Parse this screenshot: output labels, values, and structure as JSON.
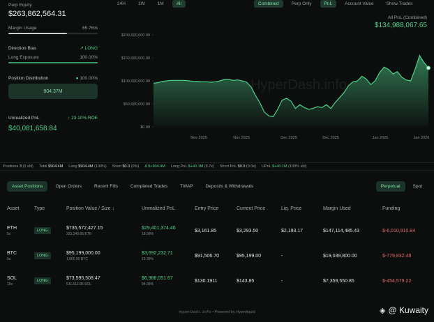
{
  "left": {
    "perp_equity_label": "Perp Equity",
    "perp_equity_value": "$263,862,564.31",
    "margin_usage_label": "Margin Usage",
    "margin_usage_value": "65.76%",
    "margin_usage_pct": 65.76,
    "direction_bias_label": "Direction Bias",
    "direction_bias_value": "LONG",
    "long_exposure_label": "Long Exposure",
    "long_exposure_value": "100.00%",
    "long_exposure_pct": 100,
    "position_distribution_label": "Position Distribution",
    "position_distribution_pct": "100.00%",
    "position_distribution_value": "904.37M",
    "unrealized_pnl_label": "Unrealized PnL",
    "roe_value": "23.10% ROE",
    "unrealized_pnl_value": "$40,081,658.84"
  },
  "chart_controls": {
    "ranges": [
      "24H",
      "1W",
      "1M",
      "All"
    ],
    "active_range": "All",
    "modes": [
      "Combined",
      "Perp Only"
    ],
    "active_mode": "Combined",
    "metrics": [
      "PnL",
      "Account Value"
    ],
    "active_metric": "PnL",
    "show_trades": "Show Trades"
  },
  "chart_header": {
    "label": "All PnL (Combined)",
    "value": "$134,988,067.65"
  },
  "chart_data": {
    "type": "area",
    "watermark": "HyperDash.info",
    "x_ticks": [
      "Nov 2025",
      "Nov 2025",
      "Dec 2025",
      "Dec 2025",
      "Jan 2026",
      "Jan 2026"
    ],
    "y_ticks": [
      "$200,000,000.00",
      "$150,000,000.00",
      "$100,000,000.00",
      "$50,000,000.00",
      "$0.00"
    ],
    "ylim": [
      0,
      200000000
    ],
    "color": "#4fd18b",
    "values": [
      95,
      96,
      99,
      100,
      101,
      101,
      101,
      101,
      100,
      99,
      99,
      98,
      98,
      97,
      98,
      100,
      103,
      103,
      101,
      102,
      100,
      97,
      87,
      68,
      52,
      32,
      24,
      22,
      38,
      58,
      62,
      56,
      40,
      48,
      42,
      38,
      40,
      44,
      42,
      48,
      40,
      53,
      64,
      75,
      90,
      98,
      100,
      110,
      104,
      92,
      100,
      118,
      130,
      125,
      115,
      120,
      108,
      102,
      100,
      125,
      155,
      140,
      128
    ]
  },
  "summary": {
    "positions_label": "Positions",
    "positions_count": "3",
    "positions_sub": "(3 shl)",
    "total_label": "Total",
    "total_value": "$904.4M",
    "long_label": "Long",
    "long_value": "$904.4M",
    "long_pct": "(100%)",
    "short_label": "Short",
    "short_value": "$0.0",
    "short_pct": "(0%)",
    "delta_value": "Δ $+904.4M",
    "long_pnl_label": "Long PnL",
    "long_pnl_value": "$+40.1M",
    "long_pnl_pct": "(6.7x)",
    "short_pnl_label": "Short PnL",
    "short_pnl_value": "$0.0",
    "short_pnl_pct": "(0.0x)",
    "upnl_label": "UPnL",
    "upnl_value": "$+40.1M",
    "upnl_pct": "(100% shl)"
  },
  "tabs": [
    "Asset Positions",
    "Open Orders",
    "Recent Fills",
    "Completed Trades",
    "TWAP",
    "Deposits & Withdrawals"
  ],
  "active_tab": "Asset Positions",
  "right_tabs": [
    "Perpetual",
    "Spot"
  ],
  "active_right_tab": "Perpetual",
  "table": {
    "headers": [
      "Asset",
      "Type",
      "Position Value / Size",
      "Unrealized PnL",
      "Entry Price",
      "Current Price",
      "Liq. Price",
      "Margin Used",
      "Funding"
    ],
    "rows": [
      {
        "asset": "ETH",
        "lev": "5x",
        "type": "LONG",
        "value": "$735,572,427.15",
        "size": "223,340.65 ETH",
        "pnl": "$29,401,374.46",
        "pnl_pct": "18.99%",
        "entry": "$3,161.85",
        "current": "$3,293.50",
        "liq": "$2,193.17",
        "margin": "$147,114,485.43",
        "funding": "$-6,010,910.84"
      },
      {
        "asset": "BTC",
        "lev": "5x",
        "type": "LONG",
        "value": "$95,199,000.00",
        "size": "1,000.00 BTC",
        "pnl": "$3,692,232.71",
        "pnl_pct": "19.39%",
        "entry": "$91,506.70",
        "current": "$95,199.00",
        "liq": "-",
        "margin": "$19,039,800.00",
        "funding": "$-779,832.48"
      },
      {
        "asset": "SOL",
        "lev": "10x",
        "type": "LONG",
        "value": "$73,595,508.47",
        "size": "511,612.85 SOL",
        "pnl": "$6,988,051.67",
        "pnl_pct": "94.95%",
        "entry": "$130.1911",
        "current": "$143.85",
        "liq": "-",
        "margin": "$7,359,550.85",
        "funding": "$-454,579.22"
      }
    ]
  },
  "footer": {
    "site": "HyperDash.info",
    "separator": "•",
    "powered": "Powered by Hyperliquid"
  },
  "corner_mark": {
    "text": "@ Kuwaity",
    "icon": "diamond-logo-icon"
  }
}
